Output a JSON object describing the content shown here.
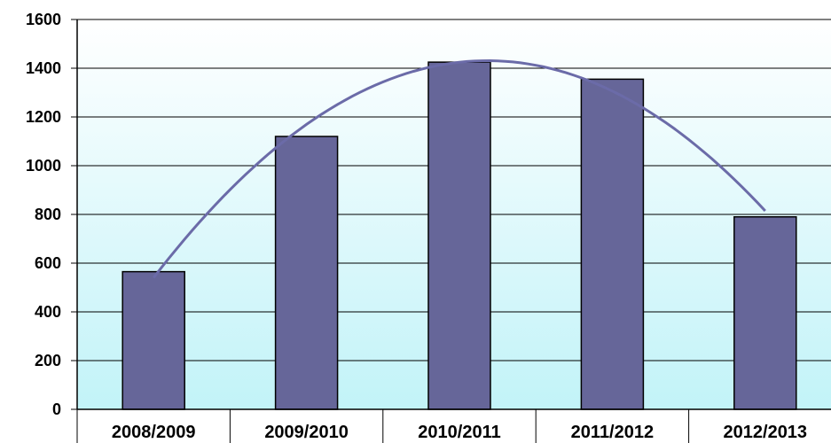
{
  "chart_data": {
    "type": "bar",
    "categories": [
      "2008/2009",
      "2009/2010",
      "2010/2011",
      "2011/2012",
      "2012/2013"
    ],
    "values": [
      565,
      1120,
      1425,
      1355,
      790
    ],
    "ylim": [
      0,
      1600
    ],
    "yticks": [
      0,
      200,
      400,
      600,
      800,
      1000,
      1200,
      1400,
      1600
    ],
    "ytick_labels": [
      "0",
      "200",
      "400",
      "600",
      "800",
      "1000",
      "1200",
      "1400",
      "1600"
    ],
    "trendline": "polynomial",
    "grid": true,
    "bar_color": "#666699",
    "trend_color": "#6b6ba8",
    "background_gradient": [
      "#ffffff",
      "#c2f3f8"
    ]
  }
}
